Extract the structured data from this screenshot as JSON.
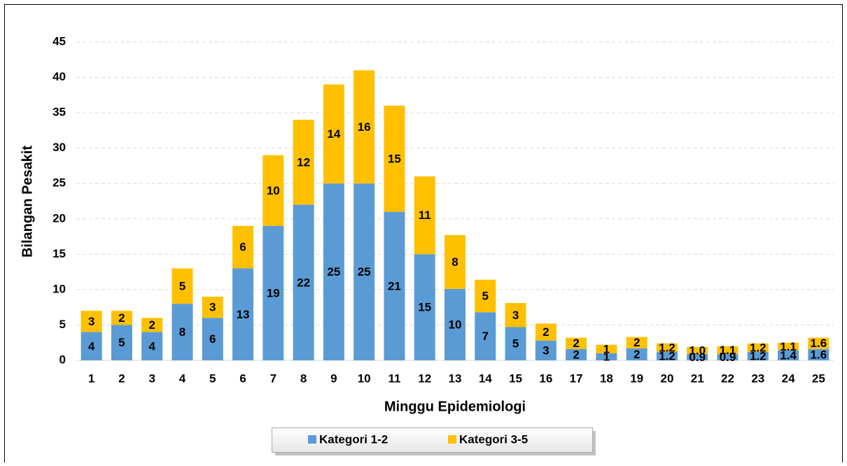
{
  "chart_data": {
    "type": "stacked_bar",
    "x_label": "Minggu Epidemiologi",
    "y_label": "Bilangan Pesakit",
    "categories": [
      "1",
      "2",
      "3",
      "4",
      "5",
      "6",
      "7",
      "8",
      "9",
      "10",
      "11",
      "12",
      "13",
      "14",
      "15",
      "16",
      "17",
      "18",
      "19",
      "20",
      "21",
      "22",
      "23",
      "24",
      "25"
    ],
    "series": [
      {
        "name": "Kategori 1-2",
        "color": "#5b9bd5",
        "values": [
          4,
          5,
          4,
          8,
          6,
          13,
          19,
          22,
          25,
          25,
          21,
          15,
          10.1,
          6.8,
          4.7,
          2.8,
          1.6,
          1,
          1.7,
          1.2,
          0.9,
          0.9,
          1.2,
          1.4,
          1.6
        ],
        "value_labels": [
          "4",
          "5",
          "4",
          "8",
          "6",
          "13",
          "19",
          "22",
          "25",
          "25",
          "21",
          "15",
          "10",
          "7",
          "5",
          "3",
          "2",
          "1",
          "2",
          "1.2",
          "0.9",
          "0.9",
          "1.2",
          "1.4",
          "1.6"
        ]
      },
      {
        "name": "Kategori 3-5",
        "color": "#ffc000",
        "values": [
          3,
          2,
          2,
          5,
          3,
          6,
          10,
          12,
          14,
          16,
          15,
          11,
          7.6,
          4.6,
          3.4,
          2.4,
          1.6,
          1.2,
          1.6,
          1.2,
          1,
          1.1,
          1.2,
          1.1,
          1.6
        ],
        "value_labels": [
          "3",
          "2",
          "2",
          "5",
          "3",
          "6",
          "10",
          "12",
          "14",
          "16",
          "15",
          "11",
          "8",
          "5",
          "3",
          "2",
          "2",
          "1",
          "2",
          "1.2",
          "1.0",
          "1.1",
          "1.2",
          "1.1",
          "1.6"
        ]
      }
    ],
    "ylim": [
      0,
      45
    ],
    "yticks": [
      0,
      5,
      10,
      15,
      20,
      25,
      30,
      35,
      40,
      45
    ],
    "grid": true,
    "legend": "bottom"
  }
}
